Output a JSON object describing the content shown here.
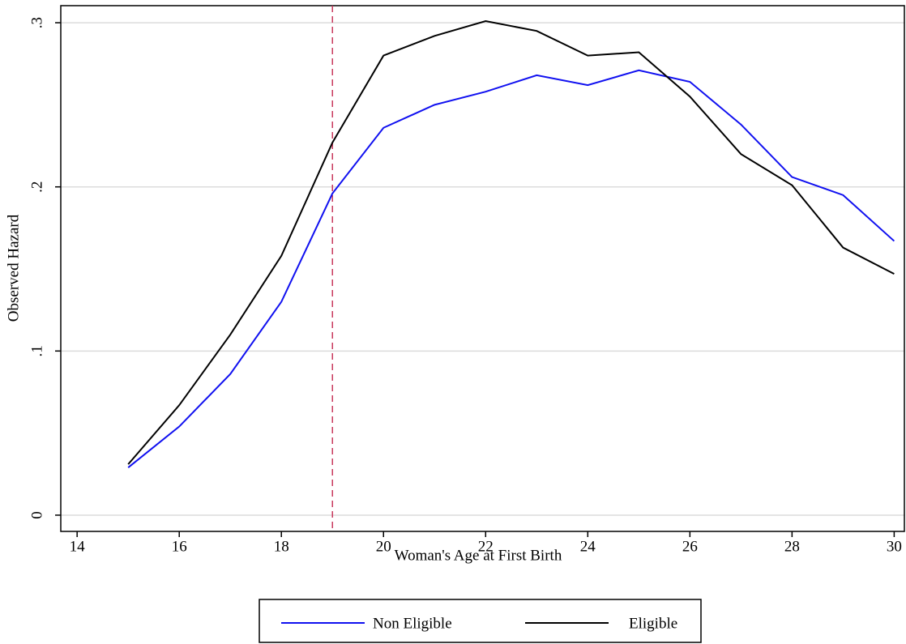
{
  "chart_data": {
    "type": "line",
    "x_label": "Woman's Age at First Birth",
    "y_label": "Observed Hazard",
    "x": [
      15,
      16,
      17,
      18,
      19,
      20,
      21,
      22,
      23,
      24,
      25,
      26,
      27,
      28,
      29,
      30
    ],
    "series": [
      {
        "name": "Non Eligible",
        "color": "#1010f0",
        "values": [
          0.029,
          0.054,
          0.086,
          0.13,
          0.196,
          0.236,
          0.25,
          0.258,
          0.268,
          0.262,
          0.271,
          0.264,
          0.238,
          0.206,
          0.195,
          0.167
        ]
      },
      {
        "name": "Eligible",
        "color": "#000000",
        "values": [
          0.031,
          0.067,
          0.11,
          0.158,
          0.227,
          0.28,
          0.292,
          0.301,
          0.295,
          0.28,
          0.282,
          0.255,
          0.22,
          0.201,
          0.163,
          0.147
        ]
      }
    ],
    "xlim": [
      13.68,
      30.2
    ],
    "ylim": [
      -0.0099,
      0.3104
    ],
    "xticks": [
      14,
      16,
      18,
      20,
      22,
      24,
      26,
      28,
      30
    ],
    "yticks": [
      0,
      {
        "value": 0.1,
        "label": ".1"
      },
      {
        "value": 0.2,
        "label": ".2"
      },
      {
        "value": 0.3,
        "label": ".3"
      }
    ],
    "grid": true,
    "vline": {
      "x": 19,
      "color": "#c8385c"
    },
    "legend": "bottom"
  }
}
